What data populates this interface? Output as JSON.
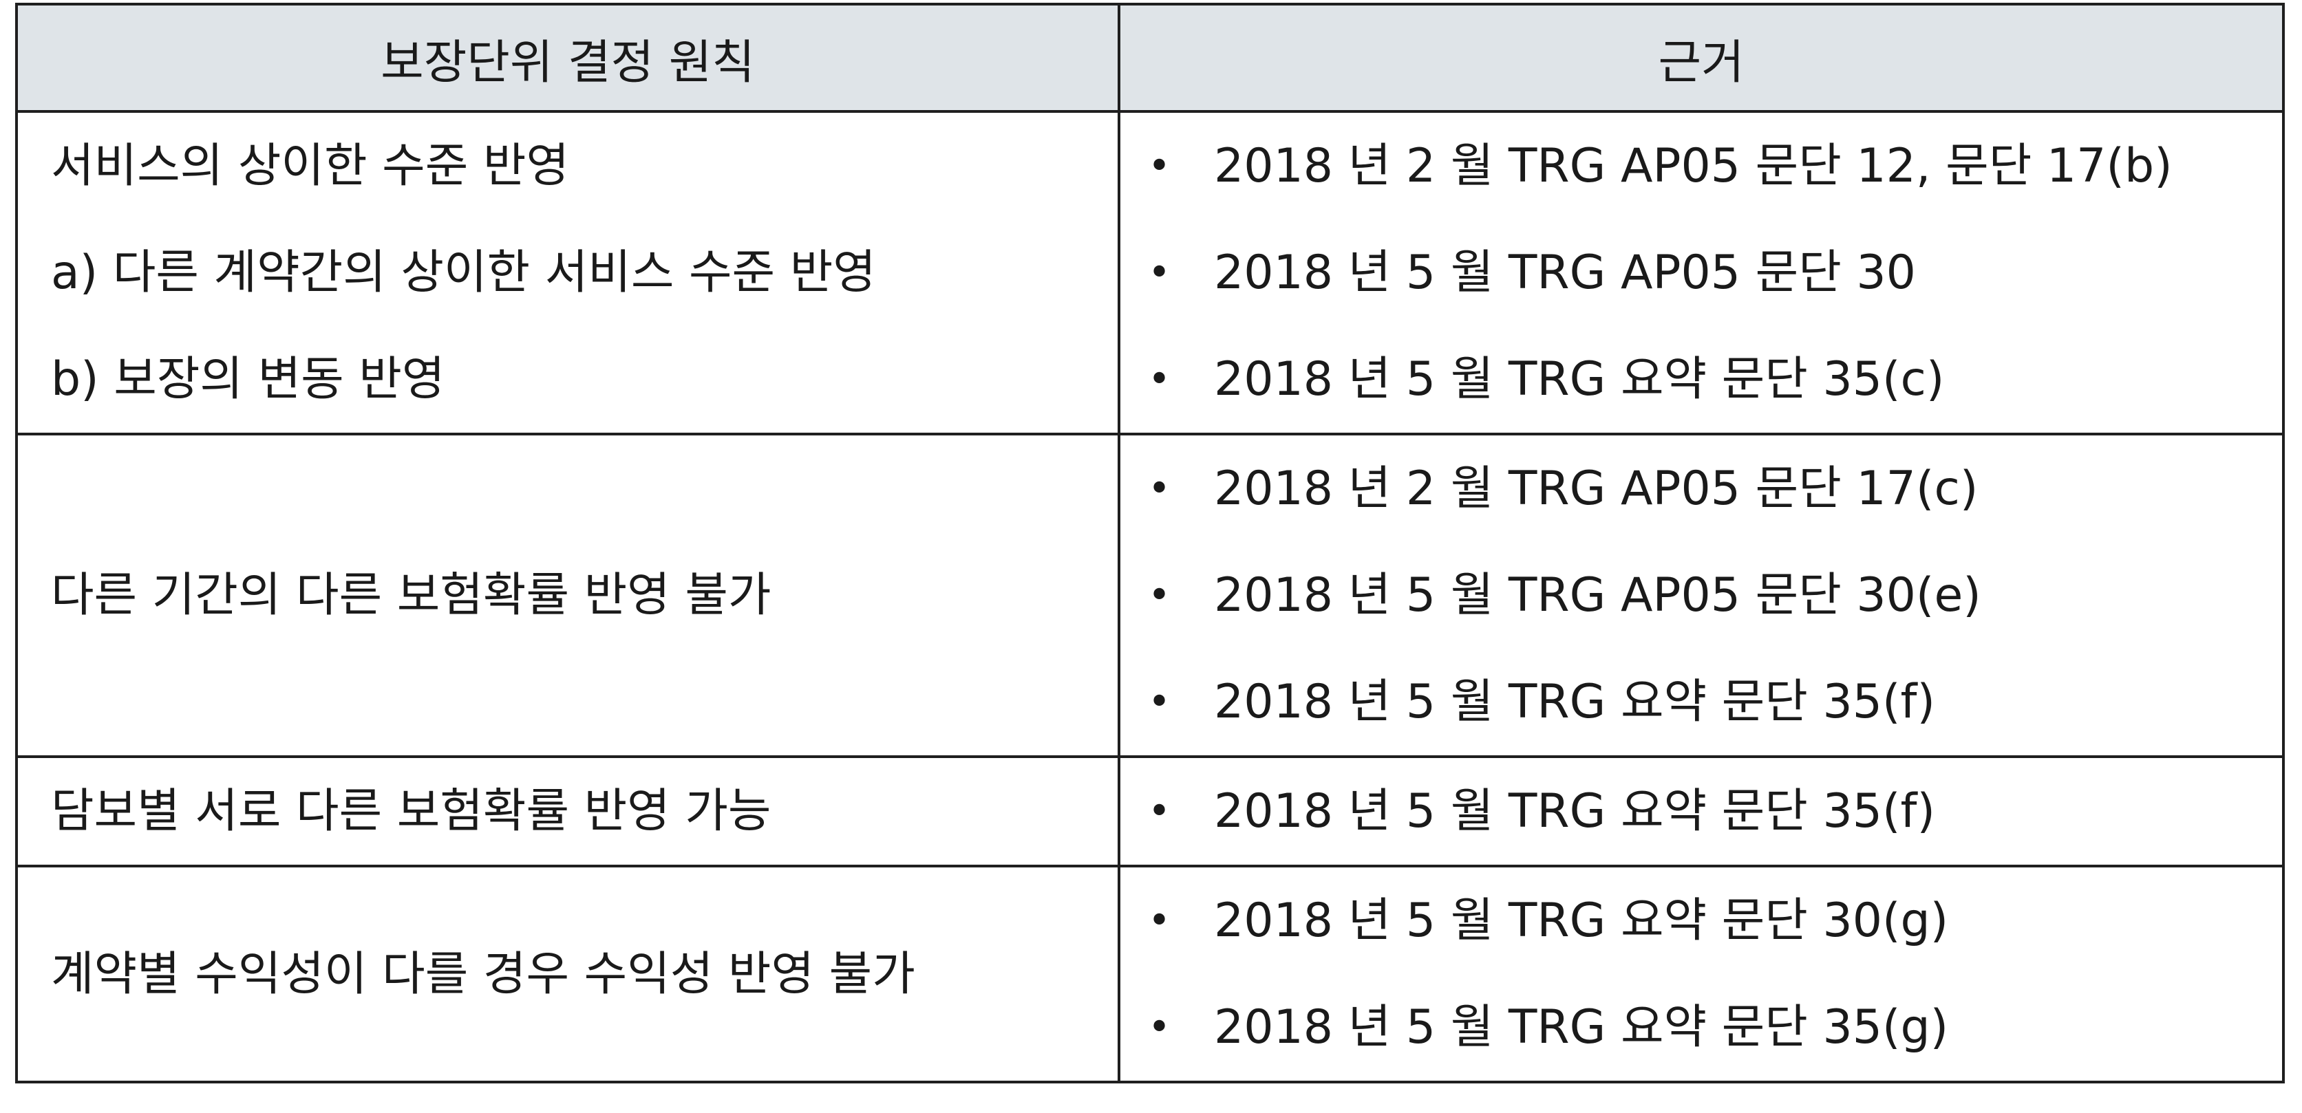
{
  "table": {
    "headers": {
      "principle": "보장단위 결정 원칙",
      "basis": "근거"
    },
    "bullet_symbol": "•",
    "rows": [
      {
        "principle_lines": [
          "서비스의 상이한 수준 반영",
          "a) 다른 계약간의 상이한 서비스 수준 반영",
          "b) 보장의 변동 반영"
        ],
        "basis": [
          "2018 년 2 월 TRG AP05 문단 12, 문단 17(b)",
          "2018 년 5 월 TRG AP05 문단 30",
          "2018 년 5 월 TRG 요약 문단 35(c)"
        ]
      },
      {
        "principle_lines": [
          "다른 기간의 다른 보험확률 반영 불가"
        ],
        "basis": [
          "2018 년 2 월 TRG AP05 문단 17(c)",
          "2018 년 5 월 TRG AP05 문단 30(e)",
          "2018 년 5 월 TRG 요약 문단 35(f)"
        ]
      },
      {
        "principle_lines": [
          "담보별 서로 다른 보험확률 반영 가능"
        ],
        "basis": [
          "2018 년 5 월 TRG 요약 문단 35(f)"
        ]
      },
      {
        "principle_lines": [
          "계약별 수익성이 다를 경우 수익성 반영 불가"
        ],
        "basis": [
          "2018 년 5 월 TRG 요약 문단 30(g)",
          "2018 년 5 월 TRG 요약 문단 35(g)"
        ]
      }
    ]
  }
}
